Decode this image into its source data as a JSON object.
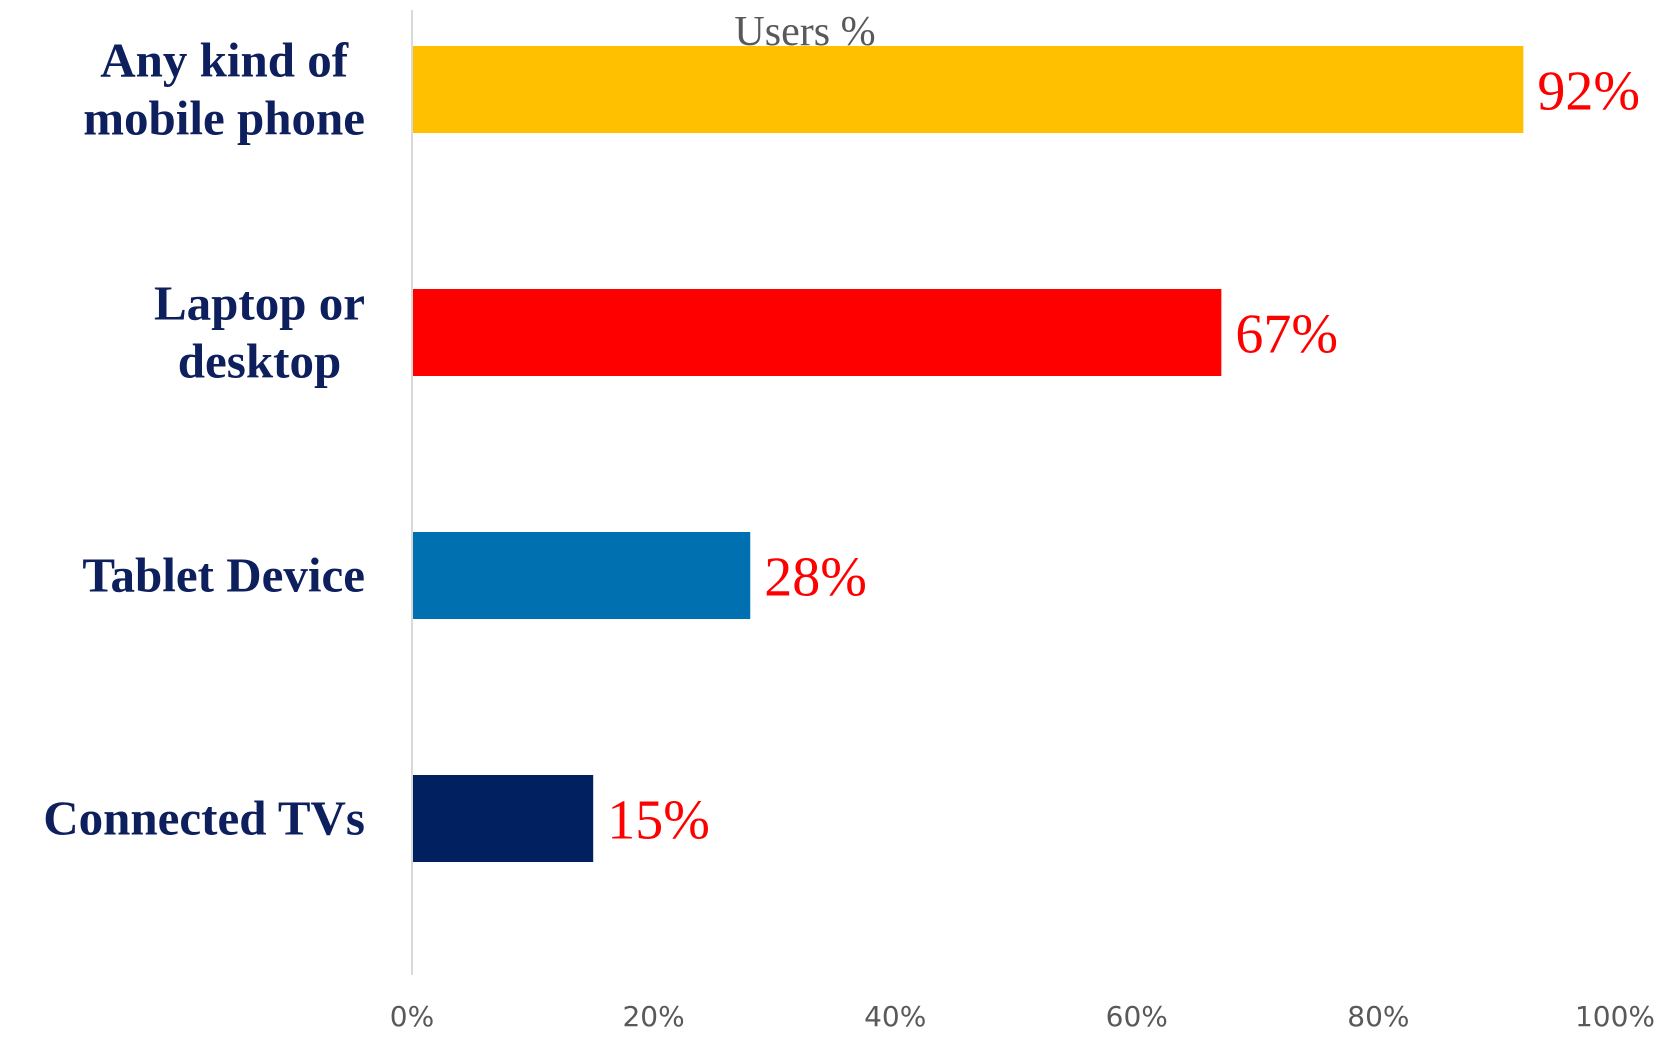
{
  "chart_data": {
    "type": "bar",
    "orientation": "horizontal",
    "title": "Users %",
    "xlabel": "",
    "ylabel": "",
    "categories": [
      [
        "Any kind of",
        "mobile phone"
      ],
      [
        "Laptop or",
        "desktop"
      ],
      [
        "Tablet Device"
      ],
      [
        "Connected TVs"
      ]
    ],
    "values": [
      92,
      67,
      28,
      15
    ],
    "data_labels": [
      "92%",
      "67%",
      "28%",
      "15%"
    ],
    "bar_colors": [
      "#FFC000",
      "#FF0000",
      "#0070B0",
      "#002060"
    ],
    "xlim": [
      0,
      100
    ],
    "ticks": [
      0,
      20,
      40,
      60,
      80,
      100
    ],
    "tick_labels": [
      "0%",
      "20%",
      "40%",
      "60%",
      "80%",
      "100%"
    ],
    "grid": false,
    "legend": "none",
    "colors": {
      "category_text": "#0D1F5C",
      "data_label_text": "#FF0000",
      "tick_text": "#595959",
      "title_text": "#595959",
      "axis_line": "#D9D9D9"
    }
  }
}
